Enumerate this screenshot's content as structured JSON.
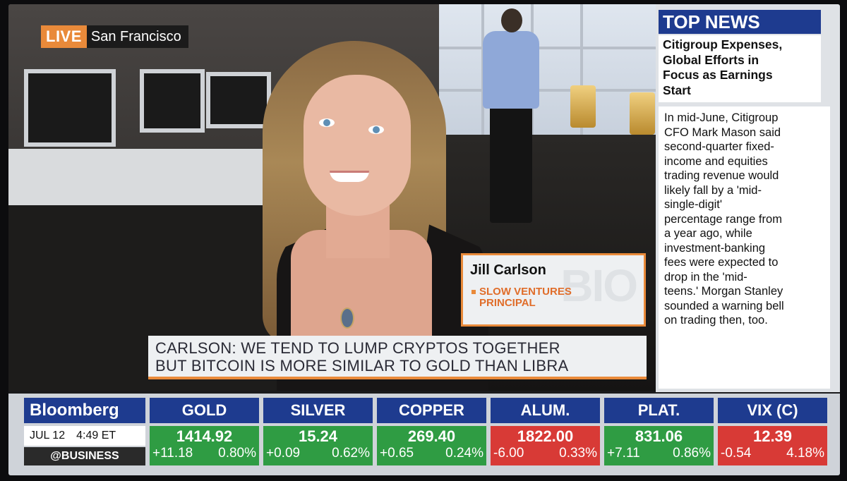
{
  "live_bug": {
    "tag": "LIVE",
    "location": "San Francisco"
  },
  "lower_third": {
    "name": "Jill Carlson",
    "title_line1": "SLOW VENTURES",
    "title_line2": "PRINCIPAL",
    "watermark": "BIO"
  },
  "quote": {
    "line1": "CARLSON: WE TEND TO LUMP CRYPTOS TOGETHER",
    "line2": "BUT BITCOIN IS MORE SIMILAR TO GOLD THAN LIBRA"
  },
  "top_news": {
    "header": "TOP NEWS",
    "headline_lines": [
      "Citigroup Expenses,",
      "Global Efforts in",
      "Focus as Earnings",
      "Start"
    ],
    "body_lines": [
      "In mid-June, Citigroup",
      "CFO Mark Mason said",
      "second-quarter fixed-",
      "income and equities",
      "trading revenue would",
      "likely fall by a 'mid-",
      "single-digit'",
      "percentage range from",
      "a year ago, while",
      "investment-banking",
      "fees were expected to",
      "drop in the 'mid-",
      "teens.' Morgan Stanley",
      "sounded a warning bell",
      "on trading then, too."
    ]
  },
  "brand": {
    "name": "Bloomberg",
    "date": "JUL 12",
    "time": "4:49 ET",
    "handle": "@BUSINESS"
  },
  "ticker": [
    {
      "name": "GOLD",
      "price": "1414.92",
      "change": "+11.18",
      "percent": "0.80%",
      "direction": "up"
    },
    {
      "name": "SILVER",
      "price": "15.24",
      "change": "+0.09",
      "percent": "0.62%",
      "direction": "up"
    },
    {
      "name": "COPPER",
      "price": "269.40",
      "change": "+0.65",
      "percent": "0.24%",
      "direction": "up"
    },
    {
      "name": "ALUM.",
      "price": "1822.00",
      "change": "-6.00",
      "percent": "0.33%",
      "direction": "down"
    },
    {
      "name": "PLAT.",
      "price": "831.06",
      "change": "+7.11",
      "percent": "0.86%",
      "direction": "up"
    },
    {
      "name": "VIX (C)",
      "price": "12.39",
      "change": "-0.54",
      "percent": "4.18%",
      "direction": "down"
    }
  ],
  "colors": {
    "brand_blue": "#1e3b8f",
    "accent_orange": "#e98a3a",
    "up_green": "#2f9c43",
    "down_red": "#d83a36"
  }
}
